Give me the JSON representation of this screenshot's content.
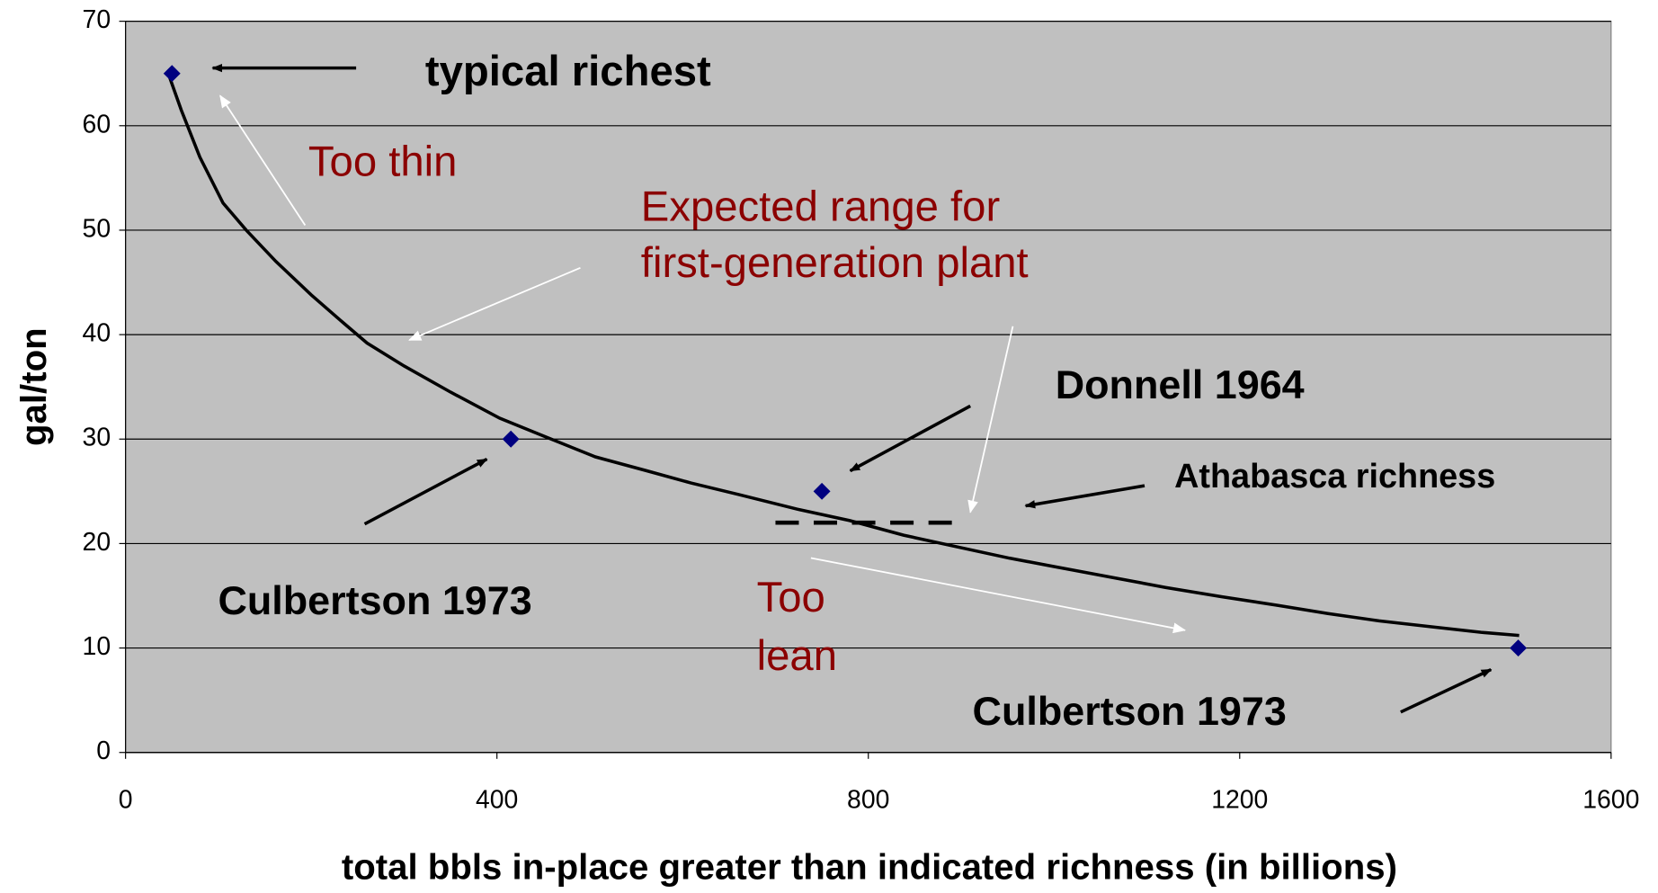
{
  "chart_data": {
    "type": "scatter",
    "xlabel": "total bbls in-place greater than indicated richness (in billions)",
    "ylabel": "gal/ton",
    "xlim": [
      0,
      1600
    ],
    "xticks": [
      0,
      400,
      800,
      1200,
      1600
    ],
    "ylim": [
      0,
      70
    ],
    "yticks": [
      0,
      10,
      20,
      30,
      40,
      50,
      60,
      70
    ],
    "grid": true,
    "background": "#c0c0c0",
    "points": {
      "color": "#000080",
      "x": [
        50,
        415,
        750,
        1500
      ],
      "values": [
        65,
        30,
        25,
        10
      ]
    },
    "curve": {
      "color": "#000000",
      "x": [
        46,
        60,
        80,
        105,
        130,
        162,
        200,
        231,
        260,
        300,
        350,
        403,
        450,
        506,
        560,
        609,
        660,
        723,
        780,
        838,
        900,
        952,
        1000,
        1066,
        1120,
        1181,
        1240,
        1295,
        1350,
        1410,
        1460,
        1501
      ],
      "values": [
        65,
        61.5,
        57,
        52.6,
        50,
        47,
        43.8,
        41.4,
        39.2,
        37,
        34.5,
        32,
        30.3,
        28.3,
        27,
        25.8,
        24.7,
        23.3,
        22.2,
        20.8,
        19.6,
        18.6,
        17.8,
        16.7,
        15.8,
        14.9,
        14.1,
        13.3,
        12.6,
        12,
        11.5,
        11.2
      ]
    },
    "dashed_line": {
      "color": "#000000",
      "x": [
        700,
        900
      ],
      "value": 22
    },
    "annotations": [
      {
        "text": "typical richest",
        "color": "#000000",
        "bold": true
      },
      {
        "text": "Too thin",
        "color": "#8b0000",
        "bold": false
      },
      {
        "text": "Expected range for",
        "color": "#8b0000",
        "bold": false
      },
      {
        "text": "first-generation plant",
        "color": "#8b0000",
        "bold": false
      },
      {
        "text": "Donnell 1964",
        "color": "#000000",
        "bold": true
      },
      {
        "text": "Athabasca richness",
        "color": "#000000",
        "bold": true
      },
      {
        "text": "Culbertson 1973",
        "color": "#000000",
        "bold": true
      },
      {
        "text": "Too",
        "color": "#8b0000",
        "bold": false
      },
      {
        "text": "lean",
        "color": "#8b0000",
        "bold": false
      },
      {
        "text": "Culbertson 1973",
        "color": "#000000",
        "bold": true
      }
    ]
  }
}
